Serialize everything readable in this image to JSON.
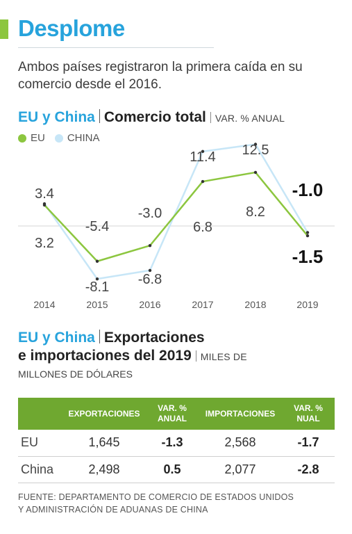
{
  "title": "Desplome",
  "subtitle": "Ambos países registraron la primera caída en su comercio desde el 2016.",
  "section1": {
    "a": "EU y China",
    "b": "Comercio total",
    "unit": "VAR. % ANUAL"
  },
  "legend": [
    {
      "name": "EU",
      "color": "#8cc63f"
    },
    {
      "name": "CHINA",
      "color": "#c7e6f7"
    }
  ],
  "chart_data": {
    "type": "line",
    "title": "Comercio total",
    "unit": "VAR. % ANUAL",
    "x": [
      "2014",
      "2015",
      "2016",
      "2017",
      "2018",
      "2019"
    ],
    "series": [
      {
        "name": "EU",
        "color": "#8cc63f",
        "values": [
          3.2,
          -5.4,
          -3.0,
          6.8,
          8.2,
          -1.5
        ]
      },
      {
        "name": "CHINA",
        "color": "#c7e6f7",
        "values": [
          3.4,
          -8.1,
          -6.8,
          11.4,
          12.5,
          -1.0
        ]
      }
    ],
    "labels": {
      "EU": [
        "3.2",
        "-5.4",
        "-3.0",
        "6.8",
        "8.2",
        "-1.5"
      ],
      "CHINA": [
        "3.4",
        "-8.1",
        "-6.8",
        "11.4",
        "12.5",
        "-1.0"
      ]
    },
    "grid": false
  },
  "section2": {
    "a": "EU y China",
    "b": "Exportaciones",
    "c": "e importaciones del 2019",
    "unit1": "MILES DE",
    "unit2": "MILLONES DE DÓLARES"
  },
  "table": {
    "headers": [
      "",
      "EXPORTACIONES",
      "VAR. % ANUAL",
      "IMPORTACIONES",
      "VAR. % NUAL"
    ],
    "rows": [
      [
        "EU",
        "1,645",
        "-1.3",
        "2,568",
        "-1.7"
      ],
      [
        "China",
        "2,498",
        "0.5",
        "2,077",
        "-2.8"
      ]
    ]
  },
  "source": {
    "line1": "FUENTE: DEPARTAMENTO DE COMERCIO DE ESTADOS UNIDOS",
    "line2": "Y ADMINISTRACIÓN DE ADUANAS DE CHINA"
  }
}
